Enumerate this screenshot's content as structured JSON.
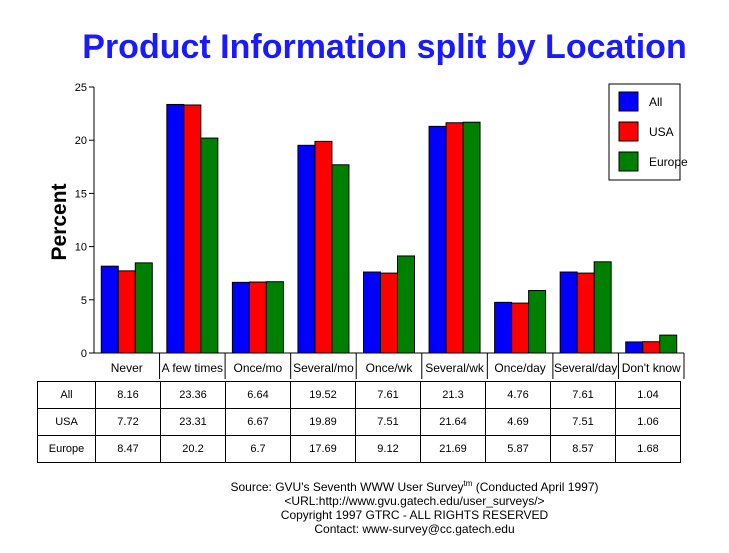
{
  "chart_data": {
    "type": "bar",
    "title": "Product Information split by Location",
    "ylabel": "Percent",
    "xlabel": "",
    "ylim": [
      0,
      25
    ],
    "yticks": [
      0,
      5,
      10,
      15,
      20,
      25
    ],
    "grid": false,
    "legend_position": "top-right",
    "categories": [
      "Never",
      "A few times",
      "Once/mo",
      "Several/mo",
      "Once/wk",
      "Several/wk",
      "Once/day",
      "Several/day",
      "Don't know"
    ],
    "series": [
      {
        "name": "All",
        "color": "#0000ff",
        "values": [
          8.16,
          23.36,
          6.64,
          19.52,
          7.61,
          21.3,
          4.76,
          7.61,
          1.04
        ]
      },
      {
        "name": "USA",
        "color": "#ff0000",
        "values": [
          7.72,
          23.31,
          6.67,
          19.89,
          7.51,
          21.64,
          4.69,
          7.51,
          1.06
        ]
      },
      {
        "name": "Europe",
        "color": "#008000",
        "values": [
          8.47,
          20.2,
          6.7,
          17.69,
          9.12,
          21.69,
          5.87,
          8.57,
          1.68
        ]
      }
    ]
  },
  "source": {
    "line1_pre": "Source: GVU's Seventh WWW User Survey",
    "line1_sup": "tm",
    "line1_post": " (Conducted April 1997)",
    "line2": "<URL:http://www.gvu.gatech.edu/user_surveys/>",
    "line3": "Copyright 1997 GTRC - ALL RIGHTS RESERVED",
    "line4": "Contact: www-survey@cc.gatech.edu"
  }
}
